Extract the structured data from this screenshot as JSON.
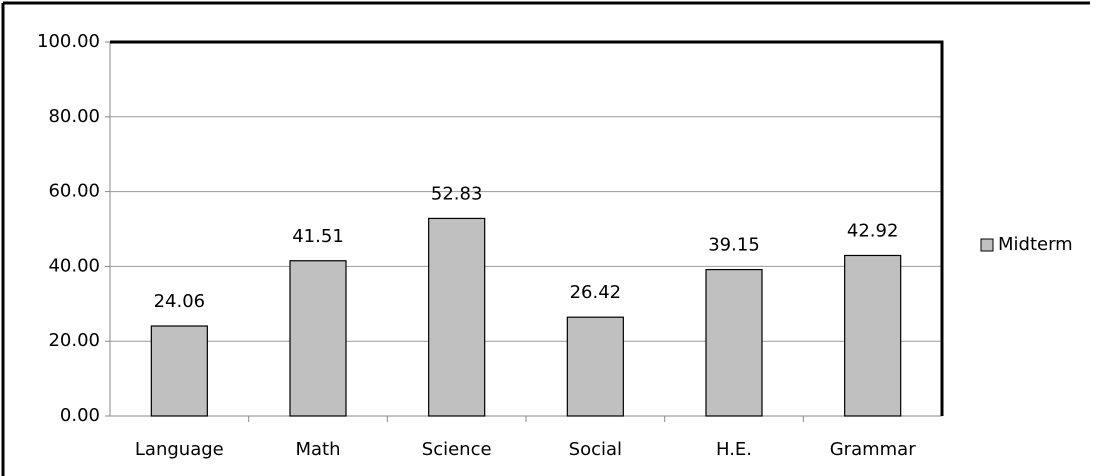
{
  "chart_data": {
    "type": "bar",
    "categories": [
      "Language",
      "Math",
      "Science",
      "Social",
      "H.E.",
      "Grammar"
    ],
    "series": [
      {
        "name": "Midterm",
        "color": "#c0c0c0",
        "values": [
          24.06,
          41.51,
          52.83,
          26.42,
          39.15,
          42.92
        ]
      }
    ],
    "ylim": [
      0,
      100
    ],
    "yticks": [
      {
        "value": 0,
        "label": "0.00"
      },
      {
        "value": 20,
        "label": "20.00"
      },
      {
        "value": 40,
        "label": "40.00"
      },
      {
        "value": 60,
        "label": "60.00"
      },
      {
        "value": 80,
        "label": "80.00"
      },
      {
        "value": 100,
        "label": "100.00"
      }
    ],
    "grid": true,
    "legend": "right"
  }
}
